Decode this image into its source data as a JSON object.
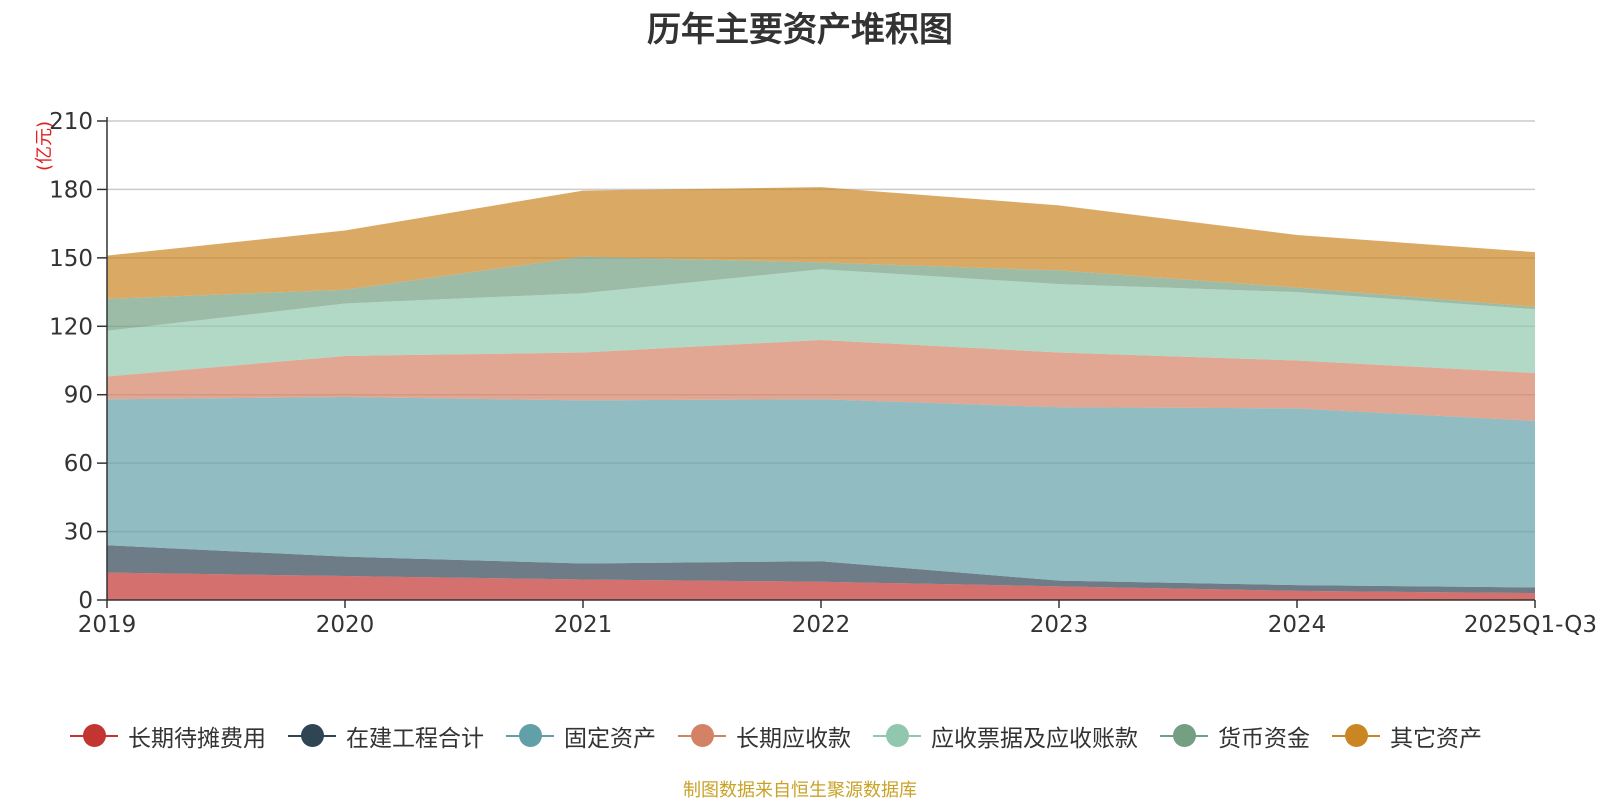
{
  "title": "历年主要资产堆积图",
  "source_note": "制图数据来自恒生聚源数据库",
  "chart_data": {
    "type": "area",
    "stacked": true,
    "title": "历年主要资产堆积图",
    "ylabel": "(亿元)",
    "ylim": [
      0,
      210
    ],
    "yticks": [
      0,
      30,
      60,
      90,
      120,
      150,
      180,
      210
    ],
    "grid": true,
    "legend_position": "bottom",
    "categories": [
      "2019",
      "2020",
      "2021",
      "2022",
      "2023",
      "2024",
      "2025Q1-Q3"
    ],
    "series": [
      {
        "name": "长期待摊费用",
        "color": "#c23531",
        "values": [
          12,
          10.5,
          9,
          8,
          6,
          4,
          3
        ]
      },
      {
        "name": "在建工程合计",
        "color": "#2f4554",
        "values": [
          12,
          8.5,
          7,
          9,
          2.5,
          2.5,
          2.5
        ]
      },
      {
        "name": "固定资产",
        "color": "#61a0a8",
        "values": [
          64,
          70,
          71.5,
          71,
          76,
          77.5,
          73
        ]
      },
      {
        "name": "长期应收款",
        "color": "#d48265",
        "values": [
          10,
          18,
          21,
          26,
          24,
          21,
          21
        ]
      },
      {
        "name": "应收票据及应收账款",
        "color": "#91c7ae",
        "values": [
          20,
          23,
          26,
          31,
          30,
          30,
          28
        ]
      },
      {
        "name": "货币资金",
        "color": "#749f83",
        "values": [
          14,
          6,
          16,
          3,
          6,
          2,
          1
        ]
      },
      {
        "name": "其它资产",
        "color": "#ca8622",
        "values": [
          19,
          26,
          29,
          33,
          28.5,
          23,
          24
        ]
      }
    ]
  }
}
